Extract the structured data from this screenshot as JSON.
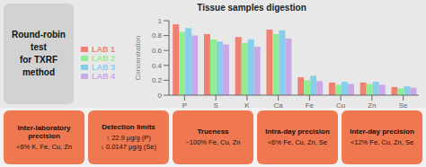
{
  "chart_data": {
    "type": "bar",
    "title": "Round-robin test\nfor TXRF\nmethod",
    "subtitle": "Tissue samples digestion",
    "y_label": "Concentration",
    "categories": [
      "P",
      "S",
      "K",
      "Ca",
      "Fe",
      "Cu",
      "Zn",
      "Se"
    ],
    "series": [
      {
        "name": "LAB 1",
        "color": "#f08070",
        "values": [
          0.95,
          0.82,
          0.78,
          0.88,
          0.24,
          0.17,
          0.17,
          0.11
        ]
      },
      {
        "name": "LAB 2",
        "color": "#90ee90",
        "values": [
          0.85,
          0.75,
          0.7,
          0.82,
          0.2,
          0.14,
          0.15,
          0.09
        ]
      },
      {
        "name": "LAB 3",
        "color": "#87ceeb",
        "values": [
          0.9,
          0.72,
          0.75,
          0.87,
          0.26,
          0.18,
          0.18,
          0.12
        ]
      },
      {
        "name": "LAB 4",
        "color": "#c8a8e8",
        "values": [
          0.8,
          0.68,
          0.65,
          0.76,
          0.19,
          0.15,
          0.14,
          0.1
        ]
      }
    ],
    "ylim": [
      0,
      1
    ],
    "yticks": [
      0,
      0.2,
      0.4,
      0.6,
      0.8,
      1
    ],
    "legend": "left",
    "grid": false,
    "annotations": [
      {
        "title": "Inter-laboratory precision",
        "body": "<6% K, Fe, Cu, Zn"
      },
      {
        "title": "Detection limits",
        "body": "↑ 22.9 μg/g  (P)\n↓ 0.0147 μg/g (Se)"
      },
      {
        "title": "Trueness",
        "body": "~100% Fe, Cu, Zn"
      },
      {
        "title": "Intra-day precision",
        "body": "<6% Fe, Cu, Zn, Se"
      },
      {
        "title": "Inter-day precision",
        "body": "<12% Fe, Cu, Zn, Se"
      }
    ]
  }
}
